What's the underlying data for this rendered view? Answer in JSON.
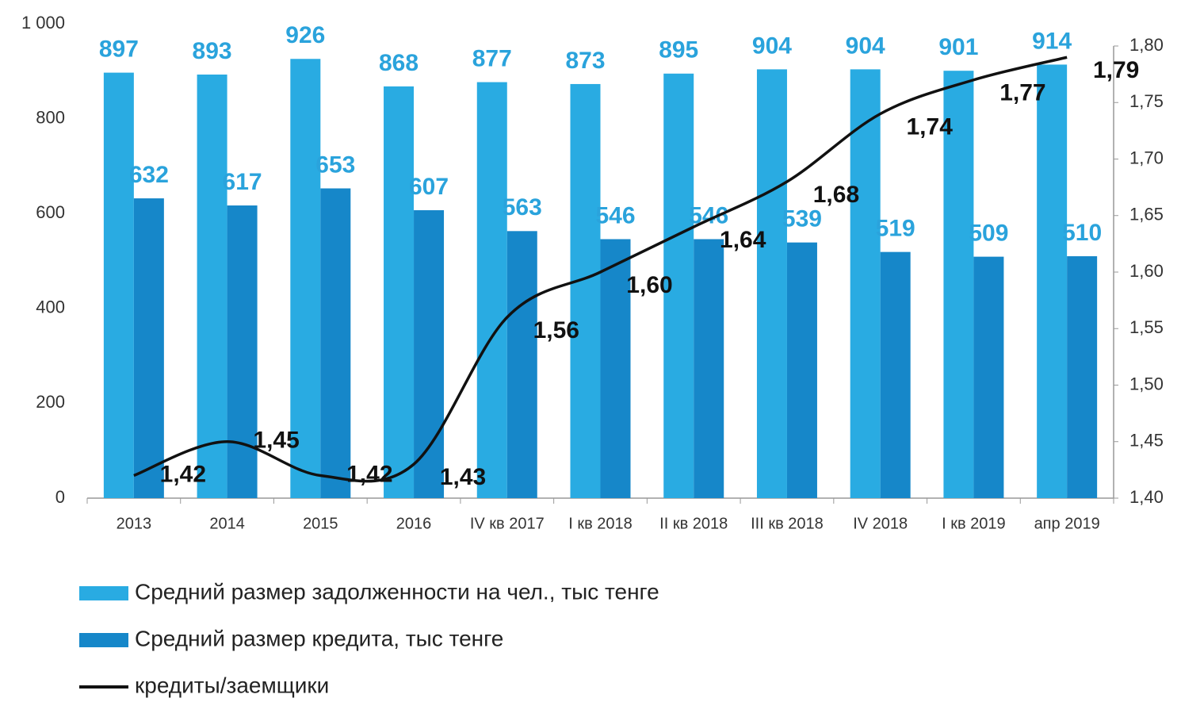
{
  "chart_data": {
    "type": "bar",
    "categories": [
      "2013",
      "2014",
      "2015",
      "2016",
      "IV кв 2017",
      "I кв 2018",
      "II кв 2018",
      "III кв 2018",
      "IV 2018",
      "I кв 2019",
      "апр 2019"
    ],
    "series": [
      {
        "name": "Средний размер задолженности на чел., тыс тенге",
        "type": "bar",
        "color": "#29abe2",
        "values": [
          897,
          893,
          926,
          868,
          877,
          873,
          895,
          904,
          904,
          901,
          914
        ]
      },
      {
        "name": "Средний размер кредита, тыс тенге",
        "type": "bar",
        "color": "#1687c9",
        "values": [
          632,
          617,
          653,
          607,
          563,
          546,
          546,
          539,
          519,
          509,
          510
        ]
      },
      {
        "name": "кредиты/заемщики",
        "type": "line",
        "axis": "y2",
        "color": "#111111",
        "values": [
          1.42,
          1.45,
          1.42,
          1.43,
          1.56,
          1.6,
          1.64,
          1.68,
          1.74,
          1.77,
          1.79
        ],
        "value_labels": [
          "1,42",
          "1,45",
          "1,42",
          "1,43",
          "1,56",
          "1,60",
          "1,64",
          "1,68",
          "1,74",
          "1,77",
          "1,79"
        ]
      }
    ],
    "ylim": [
      0,
      1000
    ],
    "yticks": [
      0,
      200,
      400,
      600,
      800,
      {
        "value": 1000,
        "label": "1 000"
      }
    ],
    "y2lim": [
      1.4,
      1.8
    ],
    "y2ticks": [
      {
        "value": 1.4,
        "label": "1,40"
      },
      {
        "value": 1.45,
        "label": "1,45"
      },
      {
        "value": 1.5,
        "label": "1,50"
      },
      {
        "value": 1.55,
        "label": "1,55"
      },
      {
        "value": 1.6,
        "label": "1,60"
      },
      {
        "value": 1.65,
        "label": "1,65"
      },
      {
        "value": 1.7,
        "label": "1,70"
      },
      {
        "value": 1.75,
        "label": "1,75"
      },
      {
        "value": 1.8,
        "label": "1,80"
      }
    ],
    "legend": "bottom"
  }
}
